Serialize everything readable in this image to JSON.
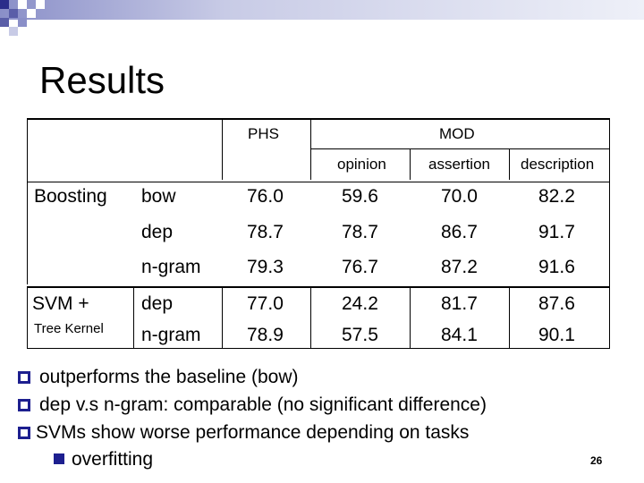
{
  "slide": {
    "title": "Results",
    "page_number": "26"
  },
  "table": {
    "header": {
      "phs": "PHS",
      "mod": "MOD",
      "sub": [
        "opinion",
        "assertion",
        "description"
      ]
    },
    "groups": [
      {
        "label": "Boosting",
        "rows": [
          {
            "feature": "bow",
            "values": [
              "76.0",
              "59.6",
              "70.0",
              "82.2"
            ]
          },
          {
            "feature": "dep",
            "values": [
              "78.7",
              "78.7",
              "86.7",
              "91.7"
            ]
          },
          {
            "feature": "n-gram",
            "values": [
              "79.3",
              "76.7",
              "87.2",
              "91.6"
            ]
          }
        ]
      },
      {
        "label": "SVM +",
        "label2": "Tree Kernel",
        "rows": [
          {
            "feature": "dep",
            "values": [
              "77.0",
              "24.2",
              "81.7",
              "87.6"
            ]
          },
          {
            "feature": "n-gram",
            "values": [
              "78.9",
              "57.5",
              "84.1",
              "90.1"
            ]
          }
        ]
      }
    ]
  },
  "bullets": [
    {
      "text": "outperforms the baseline  (bow)"
    },
    {
      "text": "dep v.s n-gram:   comparable (no significant difference)"
    },
    {
      "text": "SVMs show worse performance depending on tasks"
    },
    {
      "text": "overfitting",
      "sub": true
    }
  ],
  "colors": {
    "accent": "#1d1f8f",
    "deco_light": "#c8cbe6",
    "deco_mid": "#8a8fc8"
  }
}
